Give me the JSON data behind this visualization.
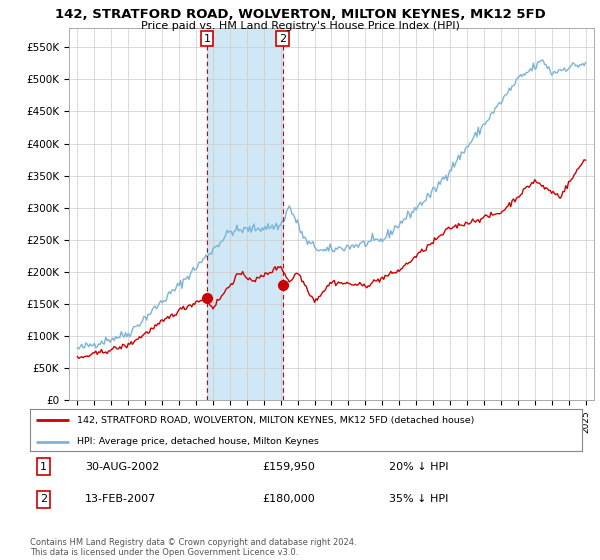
{
  "title": "142, STRATFORD ROAD, WOLVERTON, MILTON KEYNES, MK12 5FD",
  "subtitle": "Price paid vs. HM Land Registry's House Price Index (HPI)",
  "ylabel_ticks": [
    "£0",
    "£50K",
    "£100K",
    "£150K",
    "£200K",
    "£250K",
    "£300K",
    "£350K",
    "£400K",
    "£450K",
    "£500K",
    "£550K"
  ],
  "ytick_values": [
    0,
    50000,
    100000,
    150000,
    200000,
    250000,
    300000,
    350000,
    400000,
    450000,
    500000,
    550000
  ],
  "hpi_color": "#7ab4d8",
  "price_color": "#cc0000",
  "marker1_x": 2002.66,
  "marker1_y": 159950,
  "marker2_x": 2007.12,
  "marker2_y": 180000,
  "transaction1_date": "30-AUG-2002",
  "transaction1_price": "£159,950",
  "transaction1_hpi": "20% ↓ HPI",
  "transaction2_date": "13-FEB-2007",
  "transaction2_price": "£180,000",
  "transaction2_hpi": "35% ↓ HPI",
  "legend_label1": "142, STRATFORD ROAD, WOLVERTON, MILTON KEYNES, MK12 5FD (detached house)",
  "legend_label2": "HPI: Average price, detached house, Milton Keynes",
  "footer": "Contains HM Land Registry data © Crown copyright and database right 2024.\nThis data is licensed under the Open Government Licence v3.0.",
  "xlim": [
    1994.5,
    2025.5
  ],
  "ylim": [
    0,
    580000
  ],
  "background_color": "#ffffff",
  "plot_bg_color": "#ffffff",
  "grid_color": "#cccccc",
  "span_color": "#d0e8f5"
}
